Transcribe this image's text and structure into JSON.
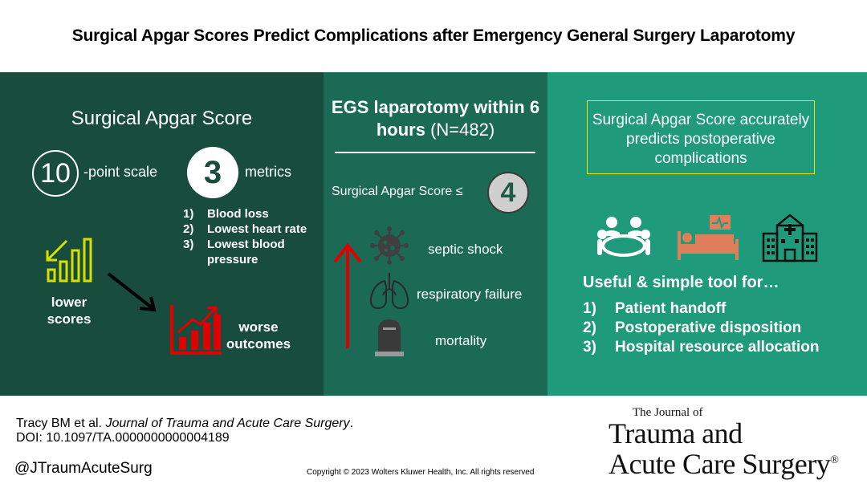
{
  "title": "Surgical Apgar Scores Predict Complications after Emergency General Surgery Laparotomy",
  "left_panel": {
    "heading": "Surgical Apgar Score",
    "scale_number": "10",
    "scale_label": "-point scale",
    "metrics_number": "3",
    "metrics_label": "metrics",
    "metrics": [
      {
        "num": "1)",
        "label": "Blood loss"
      },
      {
        "num": "2)",
        "label": "Lowest heart rate"
      },
      {
        "num": "3)",
        "label": "Lowest blood pressure"
      }
    ],
    "lower_label": "lower scores",
    "worse_label": "worse outcomes",
    "icons": [
      "bar-chart-down-icon",
      "diagonal-arrow-icon",
      "bar-chart-up-icon"
    ]
  },
  "middle_panel": {
    "heading_bold": "EGS laparotomy within 6 hours",
    "heading_normal": "(N=482)",
    "score_label": "Surgical Apgar Score ≤",
    "score_value": "4",
    "outcomes": [
      {
        "label": "septic shock",
        "icon": "virus-icon"
      },
      {
        "label": "respiratory failure",
        "icon": "lungs-icon"
      },
      {
        "label": "mortality",
        "icon": "tombstone-icon"
      }
    ],
    "colors": {
      "arrow": "#e00000"
    }
  },
  "right_panel": {
    "callout": "Surgical Apgar Score accurately predicts postoperative complications",
    "icons": [
      "meeting-icon",
      "hospital-bed-icon",
      "hospital-building-icon"
    ],
    "useful_heading": "Useful & simple tool for…",
    "uses": [
      {
        "num": "1)",
        "label": "Patient handoff"
      },
      {
        "num": "2)",
        "label": "Postoperative disposition"
      },
      {
        "num": "3)",
        "label": "Hospital resource allocation"
      }
    ]
  },
  "footer": {
    "citation_authors": "Tracy BM et al. ",
    "citation_journal": "Journal of Trauma and Acute Care Surgery",
    "citation_end": ".",
    "doi": "DOI: 10.1097/TA.0000000000004189",
    "handle": "@JTraumAcuteSurg",
    "copyright": "Copyright © 2023  Wolters Kluwer Health, Inc. All rights reserved",
    "journal_logo": {
      "line1": "The Journal of",
      "line2": "Trauma and",
      "line3": "Acute Care Surgery",
      "mark": "®"
    }
  },
  "colors": {
    "left_panel": "#184c3d",
    "middle_panel": "#1a6a56",
    "right_panel": "#1f9a7b",
    "accent_yellow": "#d8e000",
    "accent_red": "#e00000",
    "bed_orange": "#e0805a"
  }
}
